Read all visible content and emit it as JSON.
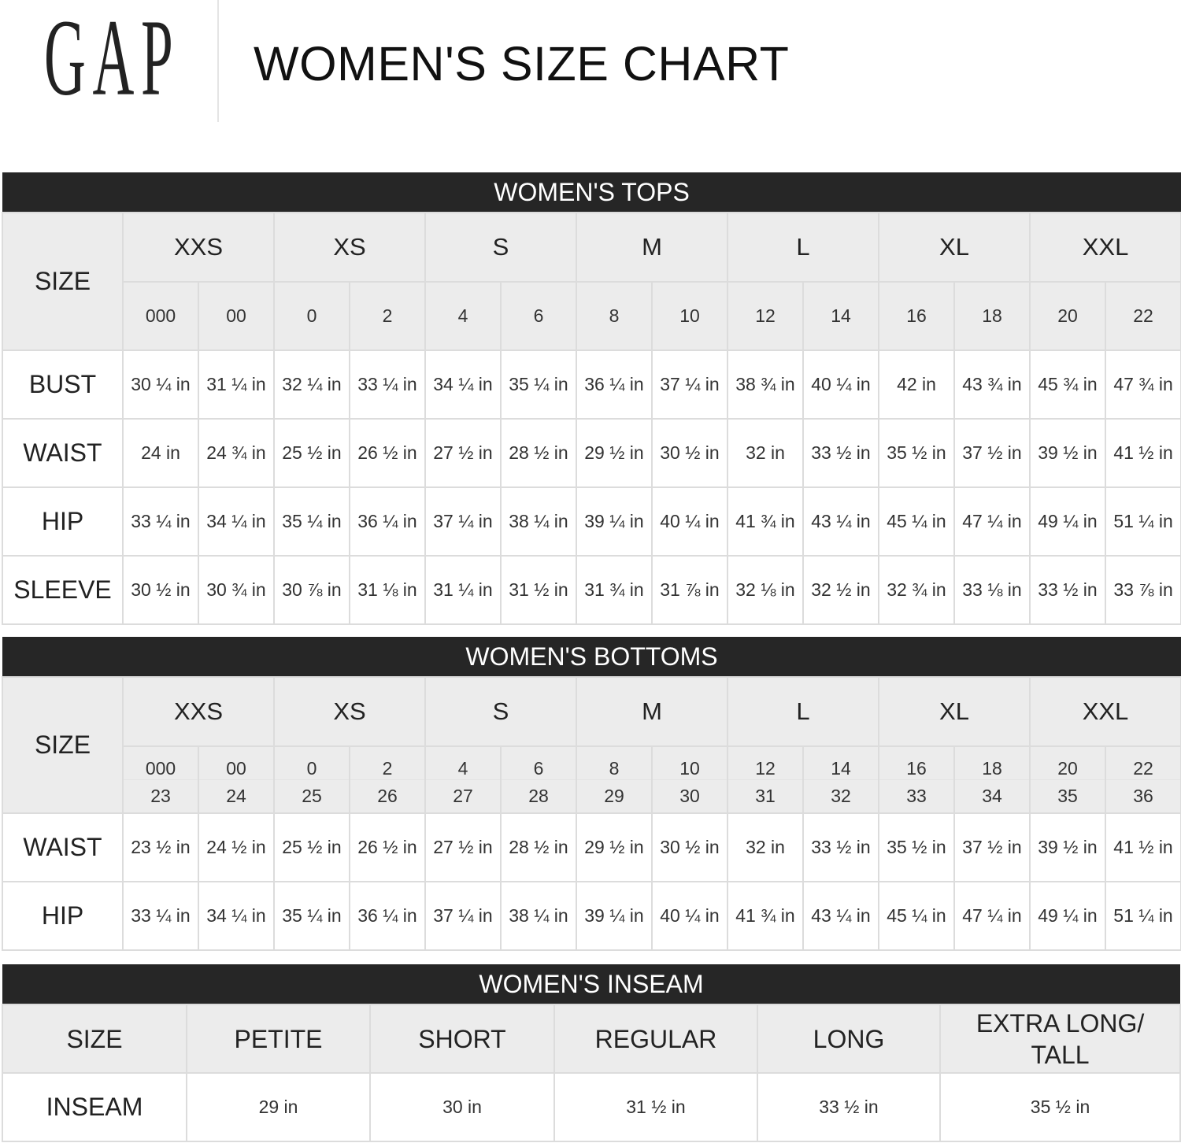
{
  "logo": "GAP",
  "title": "WOMEN'S SIZE CHART",
  "sizes": [
    "XXS",
    "XS",
    "S",
    "M",
    "L",
    "XL",
    "XXL"
  ],
  "numeric_sizes": [
    "000",
    "00",
    "0",
    "2",
    "4",
    "6",
    "8",
    "10",
    "12",
    "14",
    "16",
    "18",
    "20",
    "22"
  ],
  "tops": {
    "heading": "WOMEN'S TOPS",
    "size_label": "SIZE",
    "rows": [
      {
        "label": "BUST",
        "values": [
          "30 ¼ in",
          "31 ¼ in",
          "32 ¼ in",
          "33 ¼ in",
          "34 ¼ in",
          "35 ¼ in",
          "36 ¼ in",
          "37 ¼ in",
          "38 ¾ in",
          "40 ¼ in",
          "42 in",
          "43 ¾ in",
          "45 ¾ in",
          "47 ¾ in"
        ]
      },
      {
        "label": "WAIST",
        "values": [
          "24 in",
          "24 ¾ in",
          "25 ½ in",
          "26 ½ in",
          "27 ½ in",
          "28 ½ in",
          "29 ½ in",
          "30 ½ in",
          "32 in",
          "33 ½ in",
          "35 ½ in",
          "37 ½ in",
          "39 ½ in",
          "41 ½ in"
        ]
      },
      {
        "label": "HIP",
        "values": [
          "33 ¼ in",
          "34 ¼ in",
          "35 ¼ in",
          "36 ¼ in",
          "37 ¼ in",
          "38 ¼ in",
          "39 ¼ in",
          "40 ¼ in",
          "41 ¾ in",
          "43 ¼ in",
          "45 ¼ in",
          "47 ¼ in",
          "49 ¼ in",
          "51 ¼ in"
        ]
      },
      {
        "label": "SLEEVE",
        "values": [
          "30 ½ in",
          "30 ¾ in",
          "30 ⅞ in",
          "31 ⅛ in",
          "31 ¼ in",
          "31 ½ in",
          "31 ¾ in",
          "31 ⅞ in",
          "32 ⅛ in",
          "32 ½ in",
          "32 ¾ in",
          "33 ⅛ in",
          "33 ½ in",
          "33 ⅞ in"
        ]
      }
    ]
  },
  "bottoms": {
    "heading": "WOMEN'S BOTTOMS",
    "size_label": "SIZE",
    "waist_sizes": [
      "23",
      "24",
      "25",
      "26",
      "27",
      "28",
      "29",
      "30",
      "31",
      "32",
      "33",
      "34",
      "35",
      "36"
    ],
    "rows": [
      {
        "label": "WAIST",
        "values": [
          "23 ½ in",
          "24 ½ in",
          "25 ½ in",
          "26 ½ in",
          "27 ½ in",
          "28 ½ in",
          "29 ½ in",
          "30 ½ in",
          "32 in",
          "33 ½ in",
          "35 ½ in",
          "37 ½ in",
          "39 ½ in",
          "41 ½ in"
        ]
      },
      {
        "label": "HIP",
        "values": [
          "33 ¼ in",
          "34 ¼ in",
          "35 ¼ in",
          "36 ¼ in",
          "37 ¼ in",
          "38 ¼ in",
          "39 ¼ in",
          "40 ¼ in",
          "41 ¾ in",
          "43 ¼ in",
          "45 ¼ in",
          "47 ¼ in",
          "49 ¼ in",
          "51 ¼ in"
        ]
      }
    ]
  },
  "inseam": {
    "heading": "WOMEN'S INSEAM",
    "headers": [
      "SIZE",
      "PETITE",
      "SHORT",
      "REGULAR",
      "LONG",
      "EXTRA LONG/ TALL"
    ],
    "row": {
      "label": "INSEAM",
      "values": [
        "29 in",
        "30 in",
        "31 ½ in",
        "33 ½ in",
        "35 ½ in"
      ]
    }
  }
}
